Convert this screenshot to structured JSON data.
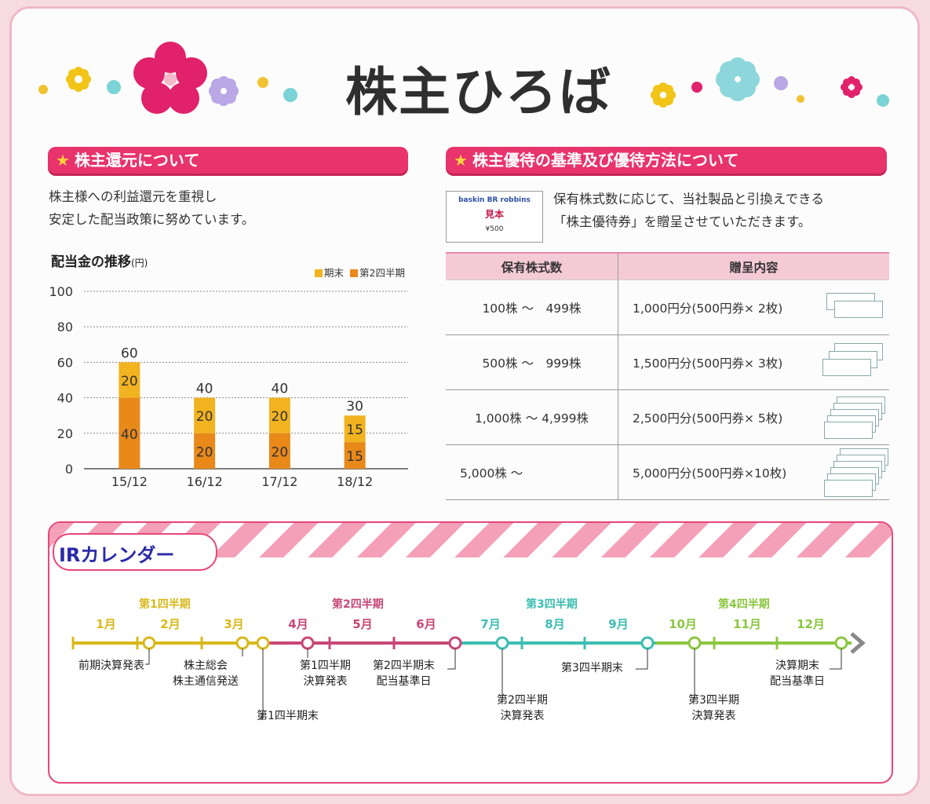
{
  "title": "株主ひろば",
  "return_section": {
    "heading": "株主還元について",
    "text_line1": "株主様への利益還元を重視し",
    "text_line2": "安定した配当政策に努めています。"
  },
  "chart": {
    "title": "配当金の推移",
    "unit": "(円)",
    "legend_year_end": "期末",
    "legend_q2": "第2四半期"
  },
  "chart_data": {
    "type": "bar",
    "stacked": true,
    "categories": [
      "15/12",
      "16/12",
      "17/12",
      "18/12"
    ],
    "series": [
      {
        "name": "第2四半期",
        "values": [
          40,
          20,
          20,
          15
        ],
        "color": "#e8891a"
      },
      {
        "name": "期末",
        "values": [
          20,
          20,
          20,
          15
        ],
        "color": "#f2b320"
      }
    ],
    "totals": [
      60,
      40,
      40,
      30
    ],
    "y_ticks": [
      0,
      20,
      40,
      60,
      80,
      100
    ],
    "ylim": [
      0,
      100
    ],
    "grid": true,
    "legend_position": "top-right"
  },
  "benefit_section": {
    "heading": "株主優待の基準及び優待方法について",
    "text_line1": "保有株式数に応じて、当社製品と引換えできる",
    "text_line2": "「株主優待券」を贈呈させていただきます。",
    "ticket_brand": "baskin BR robbins",
    "ticket_stamp": "見本",
    "ticket_value": "¥500",
    "col1": "保有株式数",
    "col2": "贈呈内容",
    "rows": [
      {
        "shares": "100株 ～　499株",
        "gift": "1,000円分(500円券× 2枚)"
      },
      {
        "shares": "500株 ～　999株",
        "gift": "1,500円分(500円券× 3枚)"
      },
      {
        "shares": "1,000株 ～ 4,999株",
        "gift": "2,500円分(500円券× 5枚)"
      },
      {
        "shares": "5,000株 ～",
        "gift": "5,000円分(500円券×10枚)"
      }
    ]
  },
  "ir_calendar": {
    "badge": "IRカレンダー",
    "quarters": [
      "第1四半期",
      "第2四半期",
      "第3四半期",
      "第4四半期"
    ],
    "months": [
      "1月",
      "2月",
      "3月",
      "4月",
      "5月",
      "6月",
      "7月",
      "8月",
      "9月",
      "10月",
      "11月",
      "12月"
    ],
    "events": {
      "prev_results": "前期決算発表",
      "agm_1": "株主総会",
      "agm_2": "株主通信発送",
      "q1_end": "第1四半期末",
      "q1_results_1": "第1四半期",
      "q1_results_2": "決算発表",
      "q2_end_1": "第2四半期末",
      "q2_end_2": "配当基準日",
      "q2_results_1": "第2四半期",
      "q2_results_2": "決算発表",
      "q3_end": "第3四半期末",
      "q3_results_1": "第3四半期",
      "q3_results_2": "決算発表",
      "fy_end_1": "決算期末",
      "fy_end_2": "配当基準日"
    }
  },
  "colors": {
    "pink": "#e8336d",
    "q1": "#d8b81a",
    "q2": "#c84775",
    "q3": "#3cbdb1",
    "q4": "#8cc63f"
  }
}
